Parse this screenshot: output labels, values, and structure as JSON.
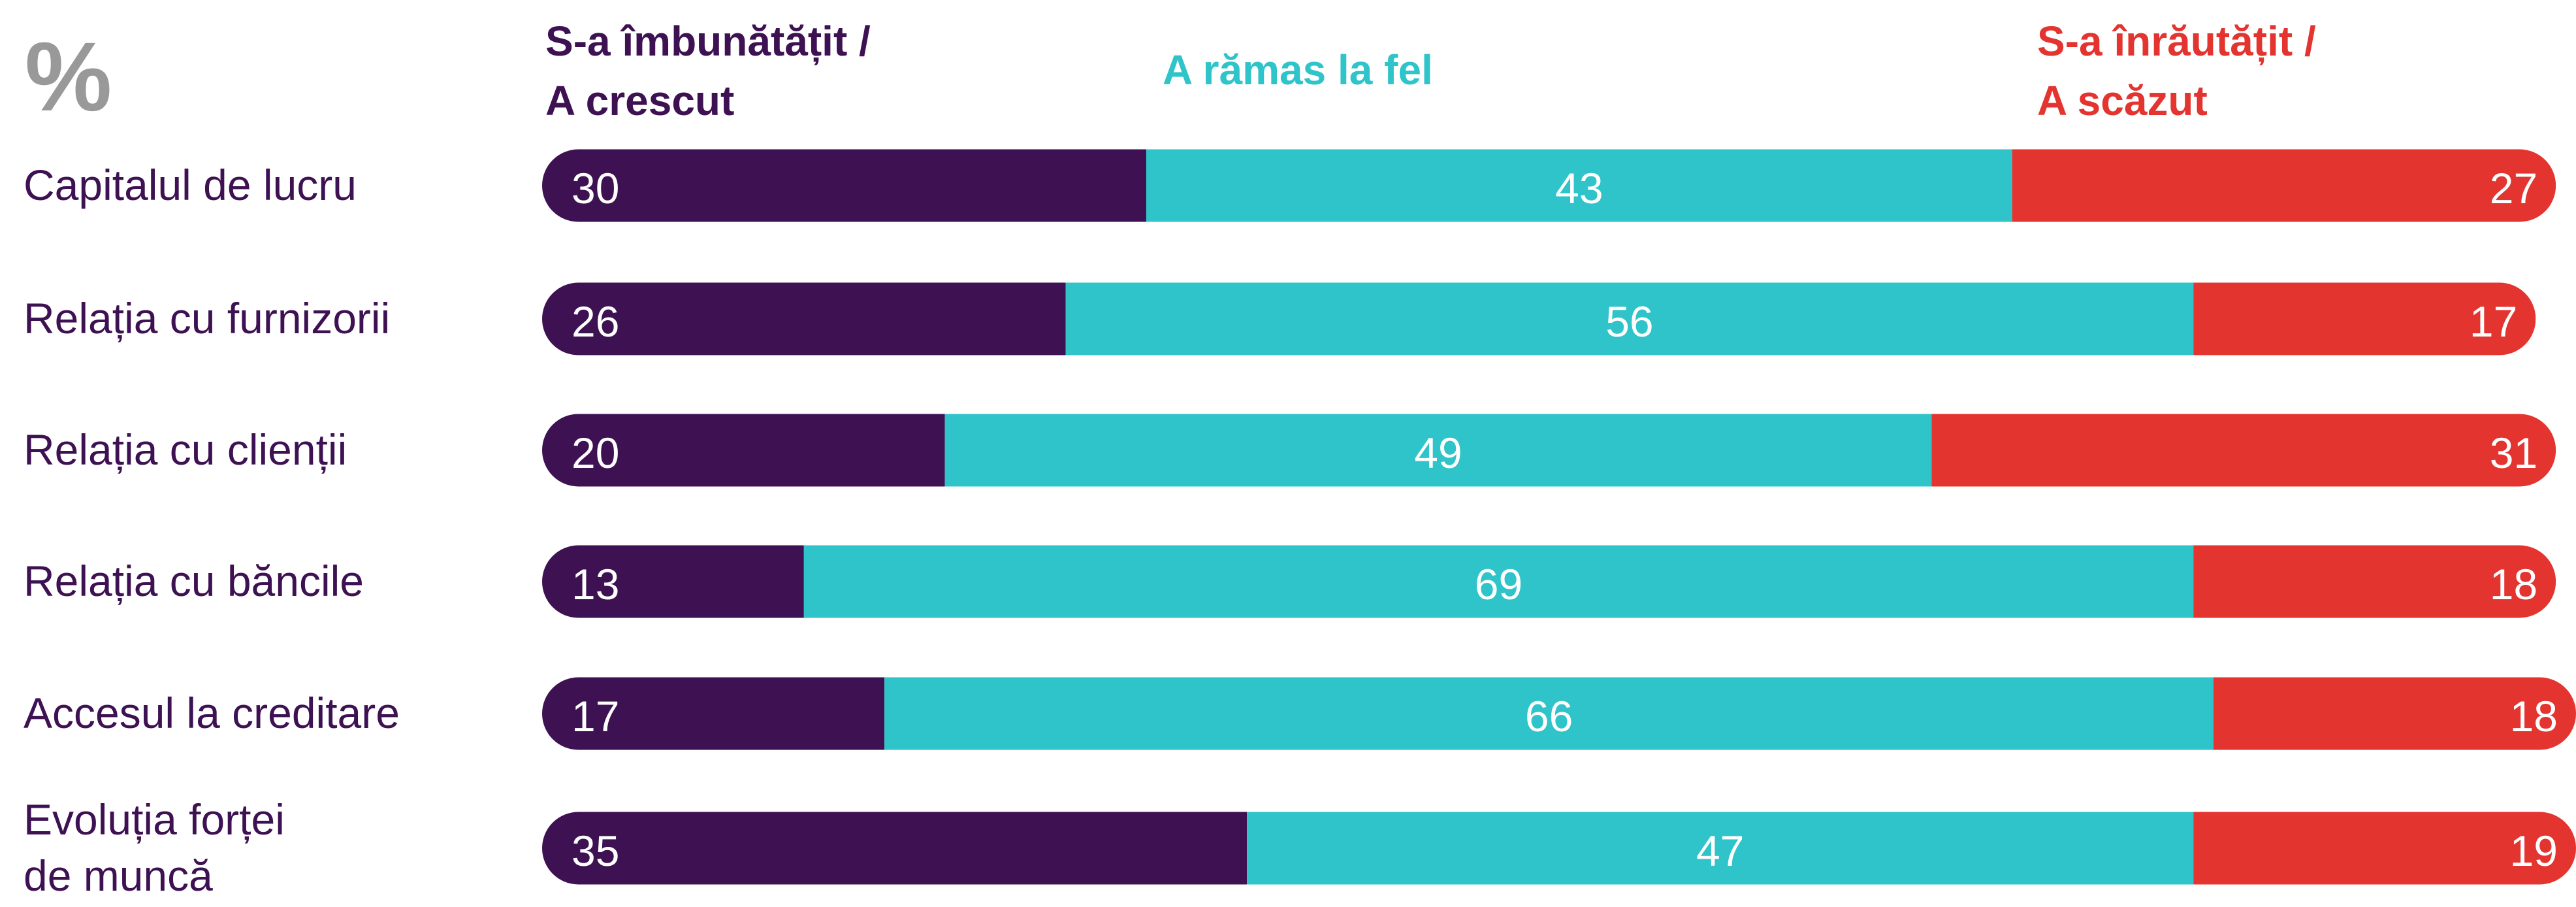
{
  "chart_data": {
    "type": "stacked-bar-horizontal",
    "title": "%",
    "categories": [
      "Capitalul de lucru",
      "Relația cu furnizorii",
      "Relația cu clienții",
      "Relația cu băncile",
      "Accesul la creditare",
      "Evoluția forței\nde muncă"
    ],
    "series": [
      {
        "name": "S-a îmbunătățit /\nA crescut",
        "color": "#3d1152",
        "values": [
          30,
          26,
          20,
          13,
          17,
          35
        ]
      },
      {
        "name": "A rămas la fel",
        "color": "#2ec4c9",
        "values": [
          43,
          56,
          49,
          69,
          66,
          47
        ]
      },
      {
        "name": "S-a înrăutățit /\nA scăzut",
        "color": "#e3342f",
        "values": [
          27,
          17,
          31,
          18,
          18,
          19
        ]
      }
    ]
  }
}
